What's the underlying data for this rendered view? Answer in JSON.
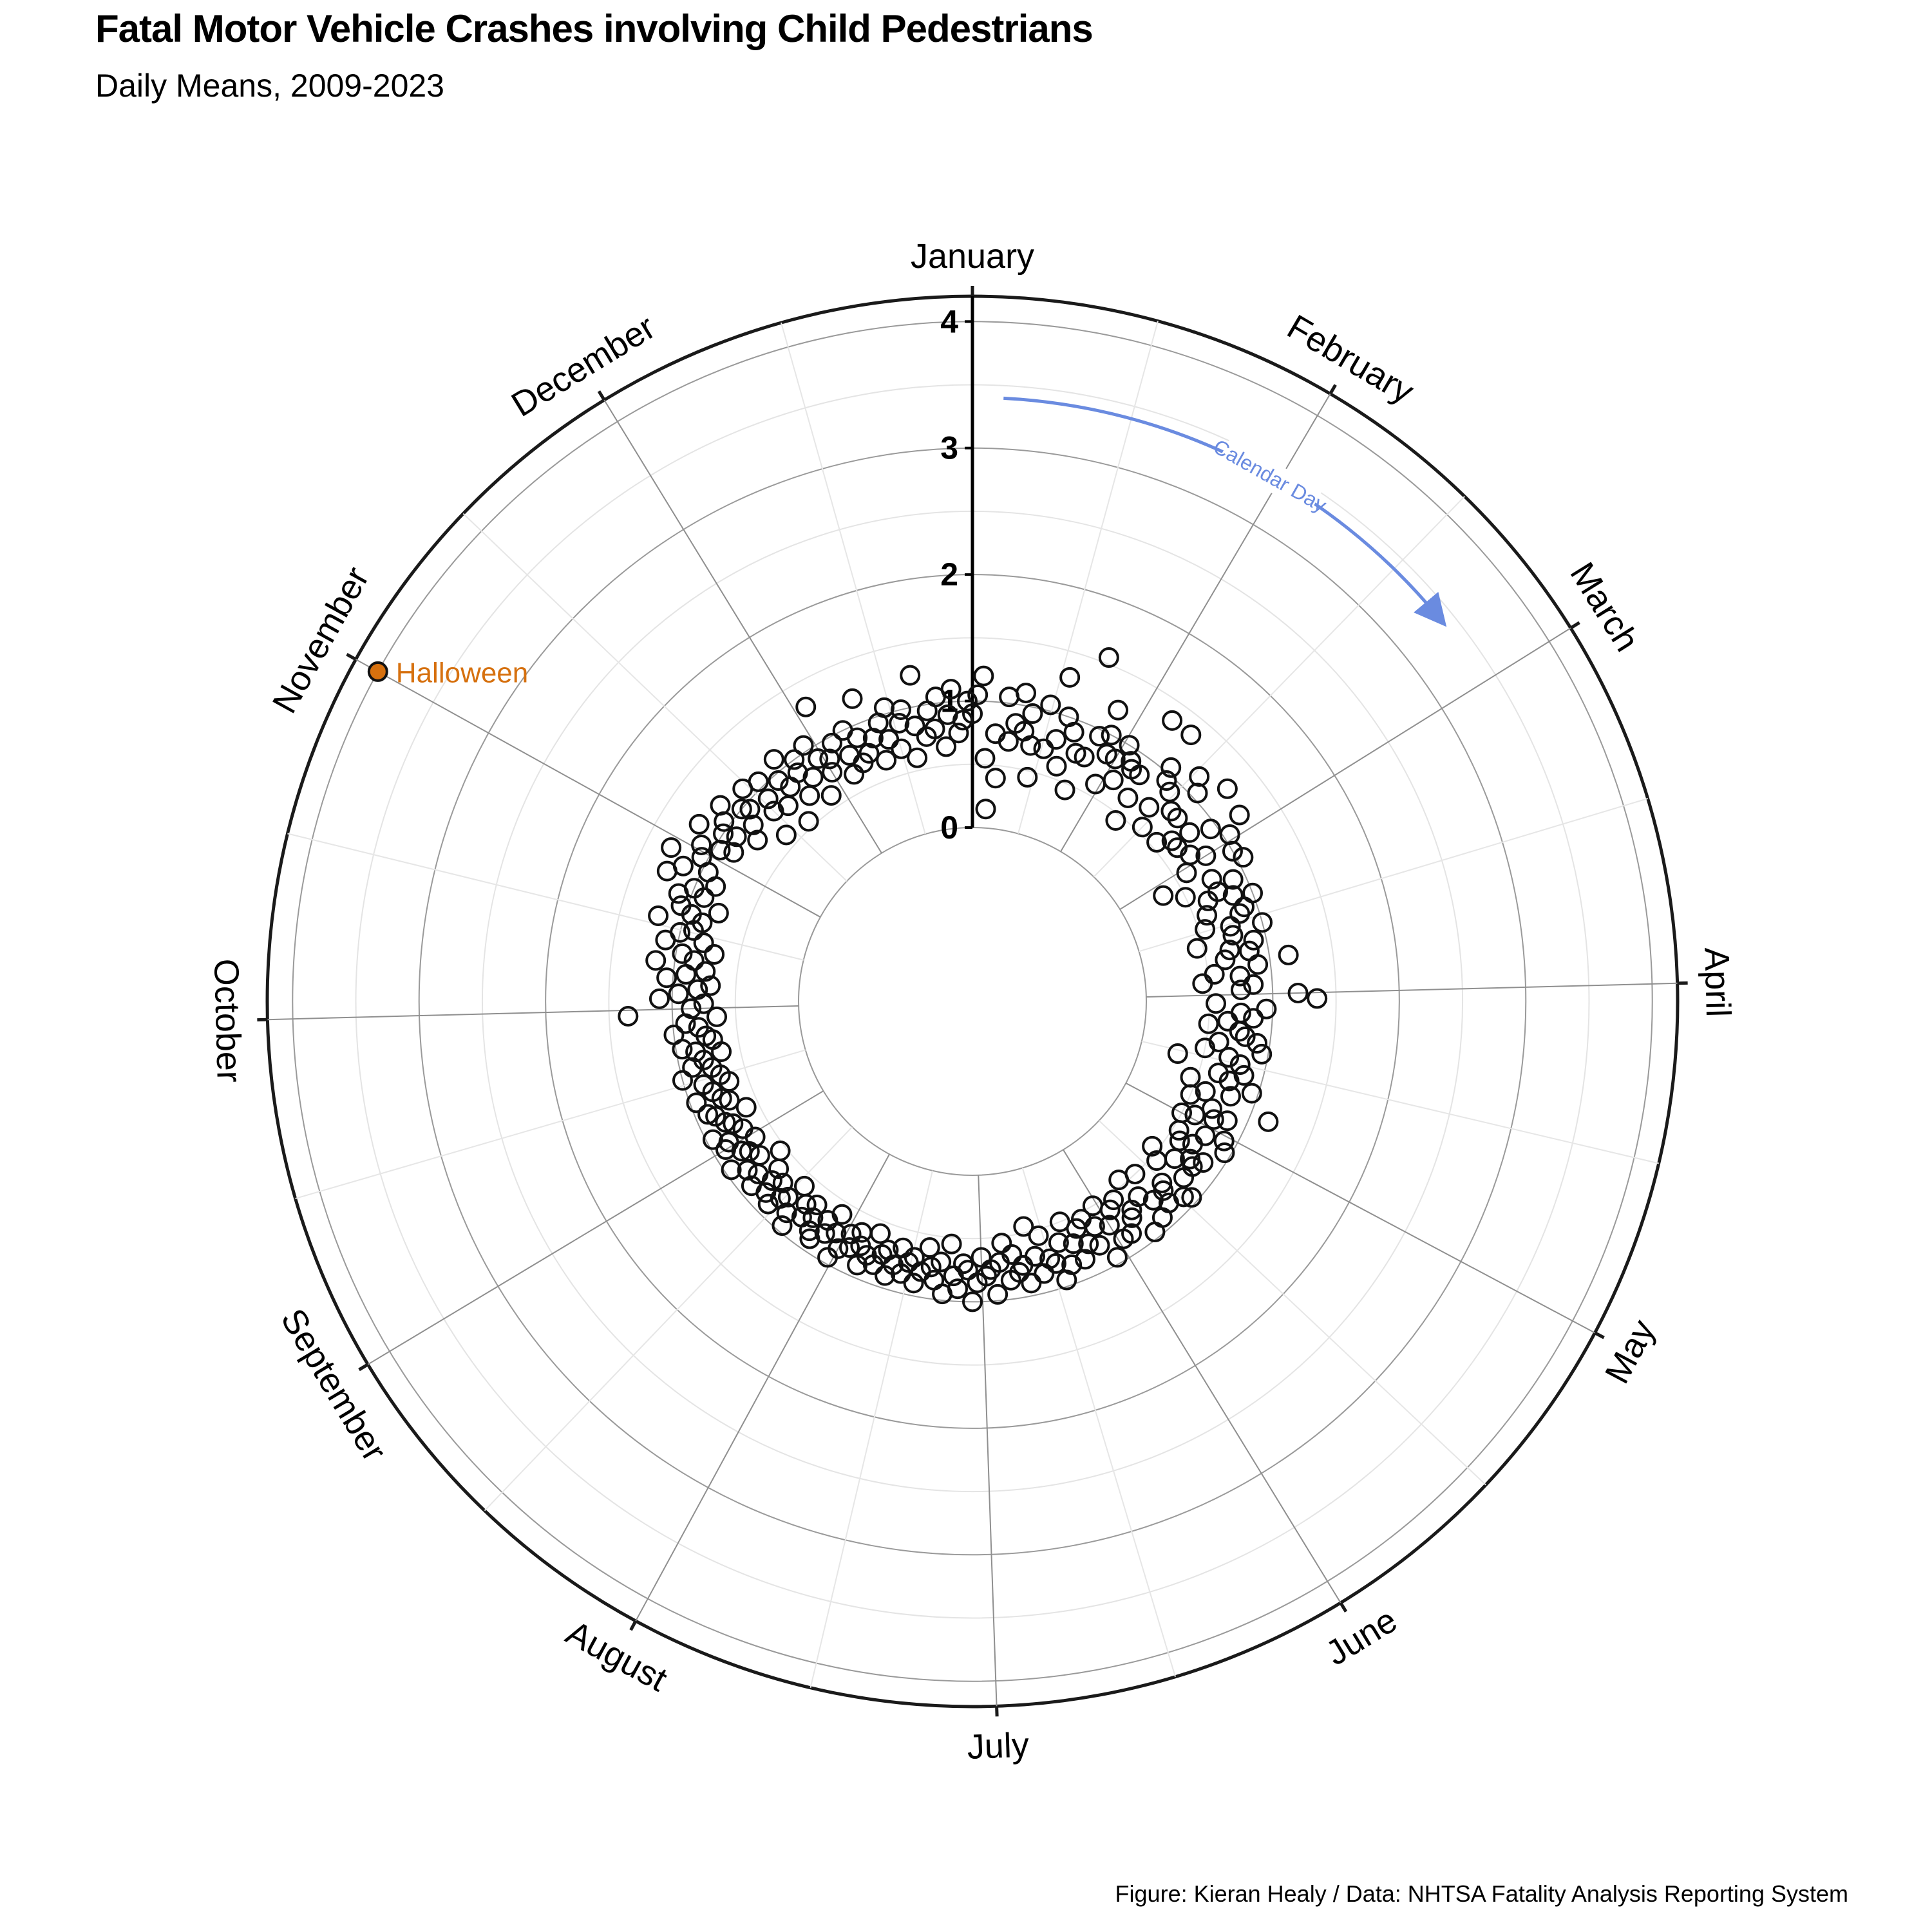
{
  "header": {
    "title": "Fatal Motor Vehicle Crashes involving Child Pedestrians",
    "subtitle": "Daily Means, 2009-2023"
  },
  "footer": {
    "caption": "Figure: Kieran Healy / Data: NHTSA Fatality Analysis Reporting System"
  },
  "chart_data": {
    "type": "scatter",
    "coordinate_system": "polar",
    "title": "Fatal Motor Vehicle Crashes involving Child Pedestrians",
    "subtitle": "Daily Means, 2009-2023",
    "angular_axis": {
      "labels": [
        "January",
        "February",
        "March",
        "April",
        "May",
        "June",
        "July",
        "August",
        "September",
        "October",
        "November",
        "December"
      ],
      "range_days": [
        1,
        366
      ],
      "direction": "clockwise",
      "start": "top"
    },
    "radial_axis": {
      "ticks": [
        0,
        1,
        2,
        3,
        4
      ],
      "range": [
        0,
        4.2
      ]
    },
    "grid": true,
    "annotations": [
      {
        "text": "Halloween",
        "day": 305,
        "value": 4.0,
        "color": "#d6700e"
      },
      {
        "text": "Calendar Day",
        "color": "#6a8be0"
      }
    ],
    "colors": {
      "points": "#111111",
      "highlight": "#d6700e",
      "arrow": "#6a8be0"
    },
    "points": [
      [
        1,
        0.9
      ],
      [
        2,
        1.05
      ],
      [
        3,
        1.2
      ],
      [
        4,
        0.55
      ],
      [
        5,
        0.15
      ],
      [
        6,
        0.75
      ],
      [
        7,
        0.4
      ],
      [
        8,
        1.05
      ],
      [
        9,
        0.7
      ],
      [
        10,
        0.85
      ],
      [
        11,
        1.1
      ],
      [
        12,
        0.8
      ],
      [
        13,
        0.95
      ],
      [
        14,
        0.7
      ],
      [
        15,
        0.45
      ],
      [
        16,
        1.05
      ],
      [
        17,
        0.7
      ],
      [
        18,
        1.3
      ],
      [
        19,
        0.8
      ],
      [
        20,
        1.0
      ],
      [
        21,
        0.6
      ],
      [
        22,
        0.9
      ],
      [
        23,
        1.55
      ],
      [
        24,
        0.75
      ],
      [
        25,
        0.45
      ],
      [
        26,
        0.75
      ],
      [
        27,
        0.95
      ],
      [
        28,
        1.2
      ],
      [
        29,
        1.0
      ],
      [
        30,
        0.85
      ],
      [
        31,
        0.6
      ],
      [
        32,
        0.85
      ],
      [
        33,
        1.0
      ],
      [
        34,
        0.7
      ],
      [
        35,
        0.9
      ],
      [
        36,
        0.85
      ],
      [
        37,
        1.35
      ],
      [
        38,
        0.85
      ],
      [
        39,
        0.65
      ],
      [
        40,
        0.45
      ],
      [
        41,
        1.35
      ],
      [
        42,
        1.05
      ],
      [
        43,
        0.95
      ],
      [
        44,
        0.7
      ],
      [
        45,
        0.9
      ],
      [
        46,
        0.55
      ],
      [
        47,
        1.15
      ],
      [
        48,
        0.8
      ],
      [
        49,
        1.05
      ],
      [
        50,
        0.8
      ],
      [
        51,
        0.55
      ],
      [
        52,
        1.25
      ],
      [
        53,
        0.65
      ],
      [
        54,
        0.8
      ],
      [
        55,
        0.65
      ],
      [
        56,
        0.95
      ],
      [
        57,
        1.2
      ],
      [
        58,
        0.7
      ],
      [
        59,
        1.05
      ],
      [
        60,
        0.8
      ],
      [
        61,
        0.6
      ],
      [
        62,
        1.0
      ],
      [
        63,
        0.35
      ],
      [
        64,
        1.05
      ],
      [
        65,
        0.75
      ],
      [
        66,
        0.5
      ],
      [
        67,
        0.9
      ],
      [
        68,
        0.75
      ],
      [
        69,
        0.65
      ],
      [
        70,
        0.85
      ],
      [
        71,
        1.0
      ],
      [
        72,
        0.6
      ],
      [
        73,
        0.9
      ],
      [
        74,
        0.85
      ],
      [
        75,
        0.55
      ],
      [
        76,
        0.75
      ],
      [
        77,
        1.0
      ],
      [
        78,
        0.75
      ],
      [
        79,
        0.45
      ],
      [
        80,
        0.9
      ],
      [
        81,
        0.7
      ],
      [
        82,
        0.85
      ],
      [
        83,
        0.65
      ],
      [
        84,
        1.15
      ],
      [
        85,
        0.9
      ],
      [
        86,
        0.55
      ],
      [
        87,
        0.75
      ],
      [
        88,
        0.45
      ],
      [
        89,
        0.85
      ],
      [
        90,
        0.75
      ],
      [
        91,
        1.2
      ],
      [
        92,
        1.35
      ],
      [
        93,
        0.55
      ],
      [
        94,
        0.95
      ],
      [
        95,
        0.75
      ],
      [
        96,
        0.85
      ],
      [
        97,
        0.65
      ],
      [
        98,
        0.5
      ],
      [
        99,
        0.75
      ],
      [
        100,
        0.8
      ],
      [
        101,
        0.9
      ],
      [
        102,
        0.6
      ],
      [
        103,
        0.95
      ],
      [
        104,
        0.5
      ],
      [
        105,
        0.7
      ],
      [
        106,
        0.8
      ],
      [
        107,
        0.3
      ],
      [
        108,
        0.85
      ],
      [
        109,
        0.65
      ],
      [
        110,
        0.75
      ],
      [
        111,
        0.95
      ],
      [
        112,
        0.45
      ],
      [
        113,
        0.8
      ],
      [
        114,
        0.6
      ],
      [
        115,
        1.15
      ],
      [
        116,
        0.5
      ],
      [
        117,
        0.7
      ],
      [
        118,
        0.85
      ],
      [
        119,
        0.75
      ],
      [
        120,
        0.6
      ],
      [
        121,
        0.5
      ],
      [
        122,
        0.9
      ],
      [
        123,
        0.75
      ],
      [
        124,
        0.95
      ],
      [
        125,
        0.55
      ],
      [
        126,
        0.7
      ],
      [
        127,
        0.6
      ],
      [
        128,
        0.85
      ],
      [
        129,
        0.75
      ],
      [
        130,
        0.8
      ],
      [
        131,
        0.65
      ],
      [
        132,
        0.45
      ],
      [
        133,
        0.8
      ],
      [
        134,
        0.55
      ],
      [
        135,
        0.95
      ],
      [
        136,
        0.9
      ],
      [
        137,
        0.7
      ],
      [
        138,
        0.75
      ],
      [
        139,
        0.85
      ],
      [
        140,
        0.5
      ],
      [
        141,
        0.75
      ],
      [
        142,
        0.9
      ],
      [
        143,
        0.65
      ],
      [
        144,
        0.45
      ],
      [
        145,
        0.95
      ],
      [
        146,
        0.7
      ],
      [
        147,
        0.75
      ],
      [
        148,
        0.55
      ],
      [
        149,
        0.85
      ],
      [
        150,
        0.6
      ],
      [
        151,
        0.85
      ],
      [
        152,
        0.7
      ],
      [
        153,
        0.5
      ],
      [
        154,
        0.95
      ],
      [
        155,
        0.65
      ],
      [
        156,
        0.8
      ],
      [
        157,
        0.55
      ],
      [
        158,
        0.75
      ],
      [
        159,
        0.6
      ],
      [
        160,
        0.85
      ],
      [
        161,
        0.7
      ],
      [
        162,
        0.5
      ],
      [
        163,
        0.85
      ],
      [
        164,
        0.65
      ],
      [
        165,
        0.95
      ],
      [
        166,
        0.8
      ],
      [
        167,
        0.75
      ],
      [
        168,
        0.55
      ],
      [
        169,
        0.85
      ],
      [
        170,
        0.7
      ],
      [
        171,
        0.45
      ],
      [
        172,
        0.9
      ],
      [
        173,
        0.75
      ],
      [
        174,
        0.8
      ],
      [
        175,
        0.65
      ],
      [
        176,
        0.85
      ],
      [
        177,
        0.55
      ],
      [
        178,
        0.7
      ],
      [
        179,
        0.95
      ],
      [
        180,
        0.75
      ],
      [
        181,
        0.8
      ],
      [
        182,
        0.65
      ],
      [
        183,
        0.85
      ],
      [
        184,
        1.0
      ],
      [
        185,
        0.75
      ],
      [
        186,
        0.7
      ],
      [
        187,
        0.9
      ],
      [
        188,
        0.8
      ],
      [
        189,
        0.55
      ],
      [
        190,
        0.95
      ],
      [
        191,
        0.7
      ],
      [
        192,
        0.85
      ],
      [
        193,
        0.75
      ],
      [
        194,
        0.6
      ],
      [
        195,
        0.8
      ],
      [
        196,
        0.9
      ],
      [
        197,
        0.7
      ],
      [
        198,
        0.75
      ],
      [
        199,
        0.85
      ],
      [
        200,
        0.65
      ],
      [
        201,
        0.8
      ],
      [
        202,
        0.9
      ],
      [
        203,
        0.7
      ],
      [
        204,
        0.75
      ],
      [
        205,
        0.85
      ],
      [
        206,
        0.6
      ],
      [
        207,
        0.8
      ],
      [
        208,
        0.9
      ],
      [
        209,
        0.75
      ],
      [
        210,
        0.65
      ],
      [
        211,
        0.8
      ],
      [
        212,
        0.7
      ],
      [
        213,
        0.85
      ],
      [
        214,
        0.95
      ],
      [
        215,
        0.75
      ],
      [
        216,
        0.6
      ],
      [
        217,
        0.8
      ],
      [
        218,
        0.7
      ],
      [
        219,
        0.9
      ],
      [
        220,
        0.85
      ],
      [
        221,
        0.75
      ],
      [
        222,
        0.65
      ],
      [
        223,
        0.8
      ],
      [
        224,
        0.7
      ],
      [
        225,
        0.95
      ],
      [
        226,
        0.85
      ],
      [
        227,
        0.6
      ],
      [
        228,
        0.75
      ],
      [
        229,
        0.8
      ],
      [
        230,
        0.9
      ],
      [
        231,
        0.7
      ],
      [
        232,
        0.85
      ],
      [
        233,
        0.75
      ],
      [
        234,
        0.65
      ],
      [
        235,
        0.9
      ],
      [
        236,
        0.8
      ],
      [
        237,
        0.55
      ],
      [
        238,
        0.85
      ],
      [
        239,
        0.7
      ],
      [
        240,
        0.95
      ],
      [
        241,
        0.75
      ],
      [
        242,
        0.8
      ],
      [
        243,
        0.65
      ],
      [
        244,
        0.9
      ],
      [
        245,
        0.85
      ],
      [
        246,
        0.7
      ],
      [
        247,
        0.95
      ],
      [
        248,
        0.75
      ],
      [
        249,
        0.8
      ],
      [
        250,
        0.6
      ],
      [
        251,
        0.85
      ],
      [
        252,
        0.9
      ],
      [
        253,
        0.7
      ],
      [
        254,
        0.75
      ],
      [
        255,
        0.95
      ],
      [
        256,
        0.8
      ],
      [
        257,
        0.65
      ],
      [
        258,
        0.85
      ],
      [
        259,
        0.7
      ],
      [
        260,
        1.0
      ],
      [
        261,
        0.75
      ],
      [
        262,
        0.9
      ],
      [
        263,
        0.8
      ],
      [
        264,
        0.65
      ],
      [
        265,
        0.85
      ],
      [
        266,
        0.95
      ],
      [
        267,
        0.7
      ],
      [
        268,
        0.75
      ],
      [
        269,
        1.0
      ],
      [
        270,
        0.8
      ],
      [
        271,
        0.9
      ],
      [
        272,
        0.65
      ],
      [
        273,
        1.35
      ],
      [
        274,
        0.85
      ],
      [
        275,
        0.75
      ],
      [
        276,
        1.1
      ],
      [
        277,
        0.95
      ],
      [
        278,
        0.8
      ],
      [
        279,
        0.7
      ],
      [
        280,
        1.05
      ],
      [
        281,
        0.9
      ],
      [
        282,
        0.75
      ],
      [
        283,
        1.15
      ],
      [
        284,
        0.85
      ],
      [
        285,
        0.95
      ],
      [
        286,
        0.7
      ],
      [
        287,
        1.1
      ],
      [
        288,
        0.8
      ],
      [
        289,
        1.0
      ],
      [
        290,
        0.9
      ],
      [
        291,
        1.2
      ],
      [
        292,
        0.85
      ],
      [
        293,
        0.95
      ],
      [
        294,
        1.05
      ],
      [
        295,
        0.75
      ],
      [
        296,
        1.1
      ],
      [
        297,
        0.9
      ],
      [
        298,
        1.0
      ],
      [
        299,
        1.25
      ],
      [
        300,
        0.85
      ],
      [
        301,
        1.15
      ],
      [
        302,
        0.95
      ],
      [
        303,
        1.3
      ],
      [
        304,
        1.05
      ],
      [
        305,
        4.0
      ],
      [
        306,
        1.1
      ],
      [
        307,
        0.95
      ],
      [
        308,
        0.85
      ],
      [
        309,
        1.2
      ],
      [
        310,
        1.0
      ],
      [
        311,
        0.9
      ],
      [
        312,
        1.05
      ],
      [
        313,
        0.75
      ],
      [
        314,
        1.15
      ],
      [
        315,
        0.85
      ],
      [
        316,
        1.0
      ],
      [
        317,
        0.95
      ],
      [
        318,
        0.6
      ],
      [
        319,
        1.1
      ],
      [
        320,
        0.8
      ],
      [
        321,
        0.9
      ],
      [
        322,
        1.05
      ],
      [
        323,
        0.75
      ],
      [
        324,
        0.55
      ],
      [
        325,
        0.95
      ],
      [
        326,
        0.85
      ],
      [
        327,
        1.1
      ],
      [
        328,
        0.7
      ],
      [
        329,
        0.9
      ],
      [
        330,
        1.0
      ],
      [
        331,
        0.8
      ],
      [
        332,
        0.6
      ],
      [
        333,
        1.05
      ],
      [
        334,
        0.9
      ],
      [
        335,
        0.75
      ],
      [
        336,
        0.85
      ],
      [
        337,
        1.3
      ],
      [
        338,
        0.95
      ],
      [
        339,
        0.65
      ],
      [
        340,
        0.8
      ],
      [
        341,
        1.0
      ],
      [
        342,
        0.7
      ],
      [
        343,
        0.9
      ],
      [
        344,
        0.75
      ],
      [
        345,
        1.2
      ],
      [
        346,
        0.85
      ],
      [
        347,
        0.65
      ],
      [
        348,
        0.95
      ],
      [
        349,
        0.8
      ],
      [
        350,
        1.05
      ],
      [
        351,
        0.7
      ],
      [
        352,
        0.9
      ],
      [
        353,
        1.0
      ],
      [
        354,
        0.6
      ],
      [
        355,
        0.85
      ],
      [
        356,
        1.25
      ],
      [
        357,
        0.75
      ],
      [
        358,
        0.95
      ],
      [
        359,
        0.8
      ],
      [
        360,
        1.05
      ],
      [
        361,
        0.65
      ],
      [
        362,
        0.9
      ],
      [
        363,
        1.1
      ],
      [
        364,
        0.75
      ],
      [
        365,
        0.85
      ],
      [
        366,
        1.0
      ]
    ]
  }
}
